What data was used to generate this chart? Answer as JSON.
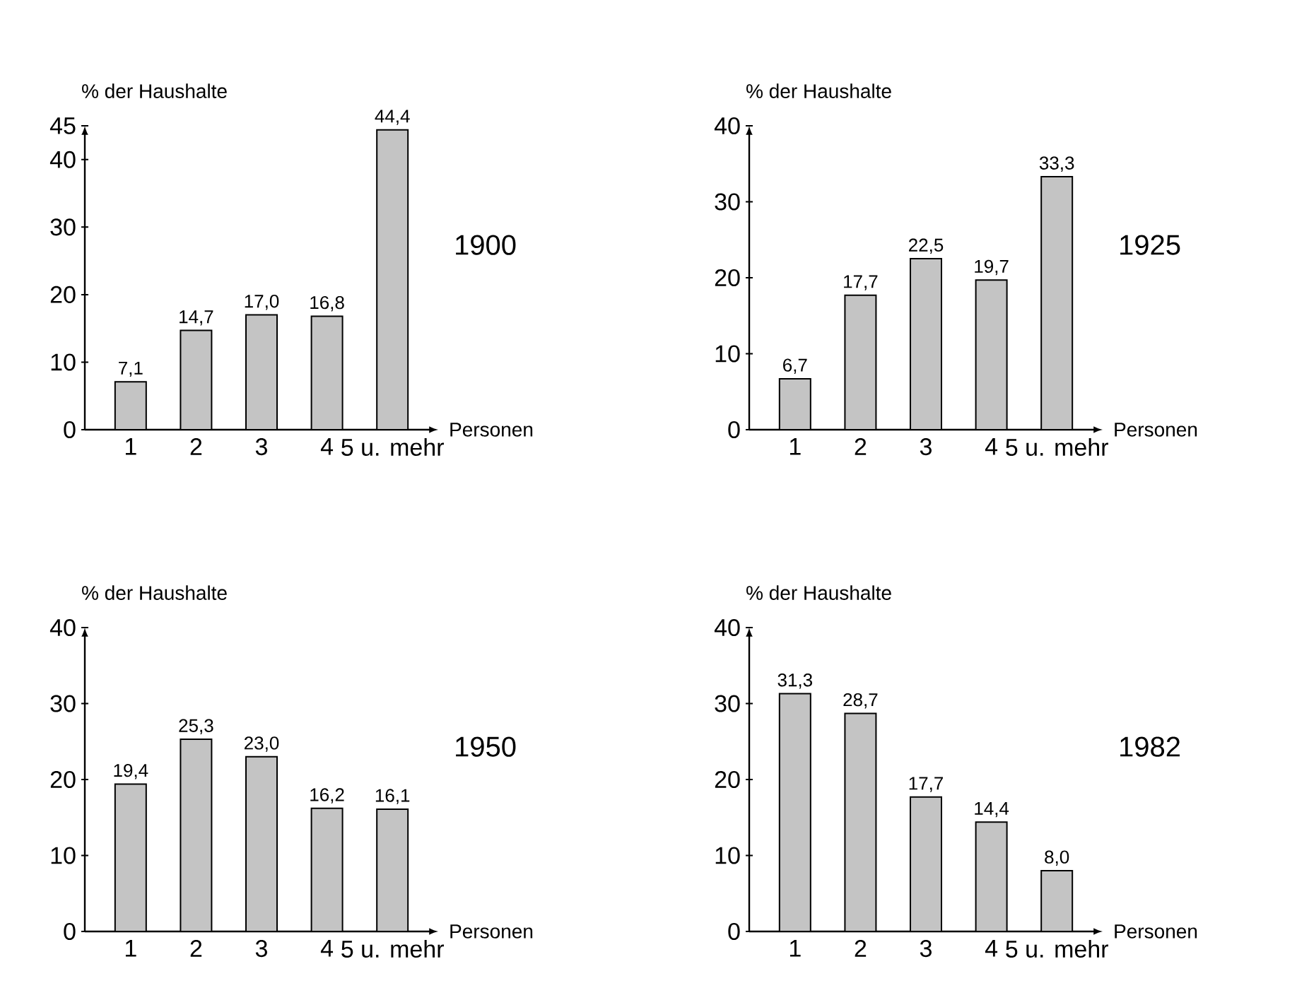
{
  "chart_data": [
    {
      "type": "bar",
      "title": "1900",
      "xlabel": "Personen",
      "ylabel": "% der Haushalte",
      "categories": [
        "1",
        "2",
        "3",
        "4",
        "5 u. mehr"
      ],
      "values": [
        7.1,
        14.7,
        17.0,
        16.8,
        44.4
      ],
      "value_labels": [
        "7,1",
        "14,7",
        "17,0",
        "16,8",
        "44,4"
      ],
      "color": "#c4c4c4",
      "ylim": [
        0,
        45
      ],
      "yticks": [
        0,
        10,
        20,
        30,
        40,
        45
      ]
    },
    {
      "type": "bar",
      "title": "1925",
      "xlabel": "Personen",
      "ylabel": "% der Haushalte",
      "categories": [
        "1",
        "2",
        "3",
        "4",
        "5 u. mehr"
      ],
      "values": [
        6.7,
        17.7,
        22.5,
        19.7,
        33.3
      ],
      "value_labels": [
        "6,7",
        "17,7",
        "22,5",
        "19,7",
        "33,3"
      ],
      "color": "#c4c4c4",
      "ylim": [
        0,
        40
      ],
      "yticks": [
        0,
        10,
        20,
        30,
        40
      ]
    },
    {
      "type": "bar",
      "title": "1950",
      "xlabel": "Personen",
      "ylabel": "% der Haushalte",
      "categories": [
        "1",
        "2",
        "3",
        "4",
        "5 u. mehr"
      ],
      "values": [
        19.4,
        25.3,
        23.0,
        16.2,
        16.1
      ],
      "value_labels": [
        "19,4",
        "25,3",
        "23,0",
        "16,2",
        "16,1"
      ],
      "color": "#c4c4c4",
      "ylim": [
        0,
        40
      ],
      "yticks": [
        0,
        10,
        20,
        30,
        40
      ]
    },
    {
      "type": "bar",
      "title": "1982",
      "xlabel": "Personen",
      "ylabel": "% der Haushalte",
      "categories": [
        "1",
        "2",
        "3",
        "4",
        "5 u. mehr"
      ],
      "values": [
        31.3,
        28.7,
        17.7,
        14.4,
        8.0
      ],
      "value_labels": [
        "31,3",
        "28,7",
        "17,7",
        "14,4",
        "8,0"
      ],
      "color": "#c4c4c4",
      "ylim": [
        0,
        40
      ],
      "yticks": [
        0,
        10,
        20,
        30,
        40
      ]
    }
  ]
}
